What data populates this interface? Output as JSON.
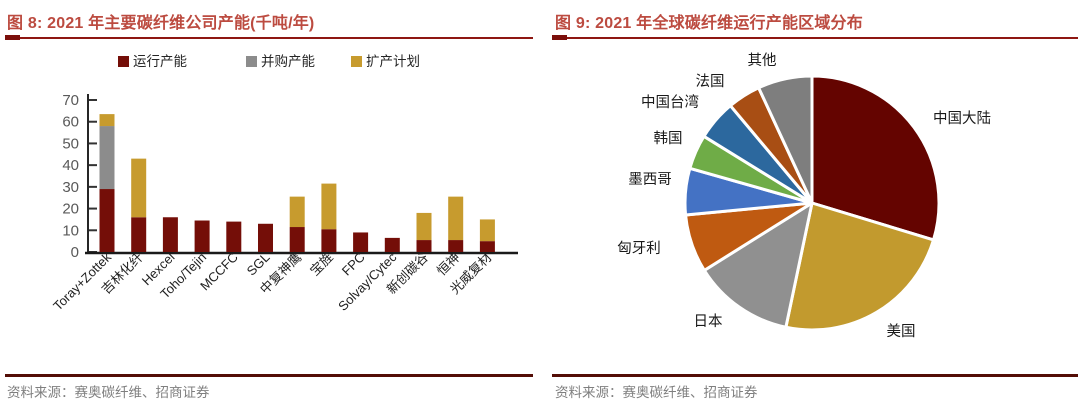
{
  "figure8": {
    "title": "图 8: 2021 年主要碳纤维公司产能(千吨/年)",
    "source": "资料来源：赛奥碳纤维、招商证券"
  },
  "figure9": {
    "title": "图 9: 2021 年全球碳纤维运行产能区域分布",
    "source": "资料来源：赛奥碳纤维、招商证券"
  },
  "colors": {
    "title_red": "#bc4b40",
    "rule_dark_red": "#8e1712",
    "footer_rule": "#530d06",
    "source_gray": "#7f7f7f",
    "axis_black": "#1a1a1a",
    "tick_label_gray": "#595959"
  },
  "chart_data": [
    {
      "type": "bar",
      "stacked": true,
      "title": "2021 年主要碳纤维公司产能(千吨/年)",
      "xlabel": "",
      "ylabel": "",
      "ylim": [
        0,
        70
      ],
      "yticks": [
        0,
        10,
        20,
        30,
        40,
        50,
        60,
        70
      ],
      "grid": false,
      "legend_position": "top",
      "categories": [
        "Toray+Zottek",
        "吉林化纤",
        "Hexcel",
        "Toho/Tejin",
        "MCCFC",
        "SGL",
        "中复神鹰",
        "宝旌",
        "FPC",
        "Solvay/Cytec",
        "新创碳谷",
        "恒神",
        "光威复材"
      ],
      "series": [
        {
          "name": "运行产能",
          "color": "#740e08",
          "values": [
            29,
            16,
            16,
            14.5,
            14,
            13,
            11.5,
            10.5,
            9,
            6.5,
            5.5,
            5.5,
            5
          ]
        },
        {
          "name": "并购产能",
          "color": "#8c8c8c",
          "values": [
            29,
            0,
            0,
            0,
            0,
            0,
            0,
            0,
            0,
            0,
            0,
            0,
            0
          ]
        },
        {
          "name": "扩产计划",
          "color": "#c79b2e",
          "values": [
            5.5,
            27,
            0,
            0,
            0,
            0,
            14,
            21,
            0,
            0,
            12.5,
            20,
            10
          ]
        }
      ]
    },
    {
      "type": "pie",
      "title": "2021 年全球碳纤维运行产能区域分布",
      "start_angle_deg": 0,
      "direction": "clockwise",
      "unit": "percent",
      "slices": [
        {
          "label": "中国大陆",
          "value": 29.7,
          "color": "#640400"
        },
        {
          "label": "美国",
          "value": 23.6,
          "color": "#c29a2e"
        },
        {
          "label": "日本",
          "value": 12.8,
          "color": "#909090"
        },
        {
          "label": "匈牙利",
          "value": 7.4,
          "color": "#bf5a11"
        },
        {
          "label": "墨西哥",
          "value": 5.9,
          "color": "#4472c4"
        },
        {
          "label": "韩国",
          "value": 4.4,
          "color": "#6fac47"
        },
        {
          "label": "中国台湾",
          "value": 5.1,
          "color": "#2c689e"
        },
        {
          "label": "法国",
          "value": 4.2,
          "color": "#a84e14"
        },
        {
          "label": "其他",
          "value": 6.9,
          "color": "#7e7e7e"
        }
      ]
    }
  ]
}
